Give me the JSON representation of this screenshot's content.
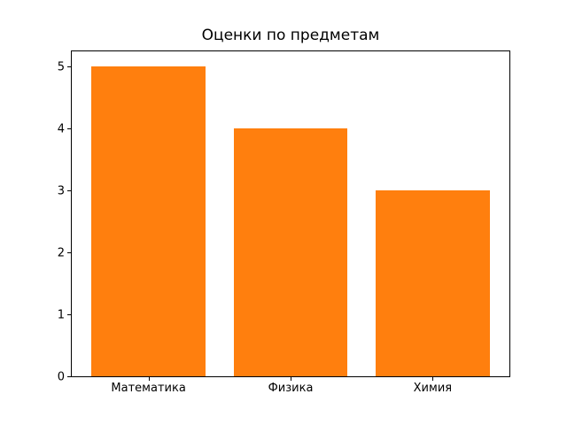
{
  "chart_data": {
    "type": "bar",
    "title": "Оценки по предметам",
    "categories": [
      "Математика",
      "Физика",
      "Химия"
    ],
    "values": [
      5,
      4,
      3
    ],
    "xlabel": "",
    "ylabel": "",
    "ylim": [
      0,
      5.25
    ],
    "yticks": [
      0,
      1,
      2,
      3,
      4,
      5
    ],
    "bar_color": "#ff7f0e",
    "bar_width_fraction": 0.8,
    "grid": false,
    "legend_position": "none",
    "spine_color": "#000000",
    "background_color": "#ffffff"
  }
}
